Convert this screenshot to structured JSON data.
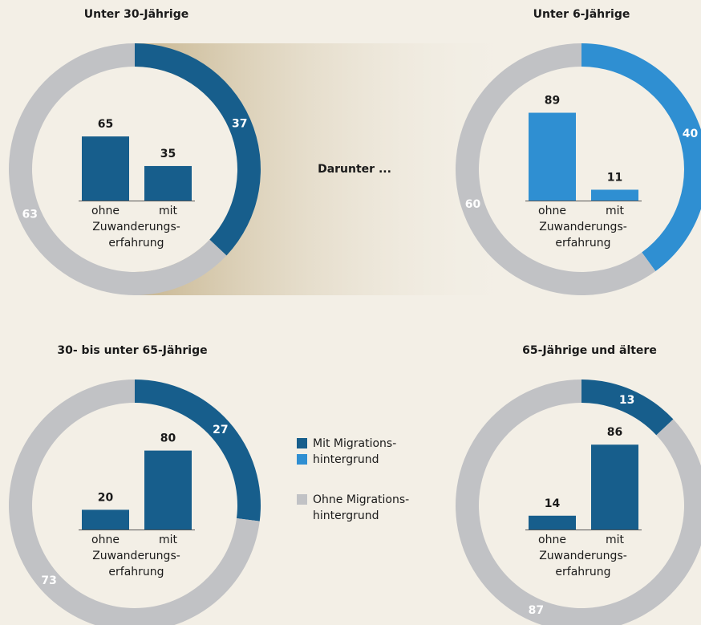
{
  "annotation": "Darunter ...",
  "legend": [
    {
      "label": [
        "Mit Migrations-",
        "hintergrund"
      ],
      "colors": [
        "#175e8c",
        "#2f8fd2"
      ]
    },
    {
      "label": [
        "Ohne Migrations-",
        "hintergrund"
      ],
      "colors": [
        "#c1c2c5"
      ]
    }
  ],
  "chart_data": [
    {
      "type": "donut",
      "title": "Unter 30-Jährige",
      "values": [
        37,
        63
      ],
      "colors": [
        "#175e8c",
        "#c1c2c5"
      ],
      "bars": {
        "categories": [
          "ohne",
          "mit"
        ],
        "values": [
          65,
          35
        ],
        "color": "#175e8c",
        "label": [
          "Zuwanderungs-",
          "erfahrung"
        ],
        "ylim": [
          0,
          100
        ]
      }
    },
    {
      "type": "donut",
      "title": "Unter 6-Jährige",
      "values": [
        40,
        60
      ],
      "colors": [
        "#2f8fd2",
        "#c1c2c5"
      ],
      "bars": {
        "categories": [
          "ohne",
          "mit"
        ],
        "values": [
          89,
          11
        ],
        "color": "#2f8fd2",
        "label": [
          "Zuwanderungs-",
          "erfahrung"
        ],
        "ylim": [
          0,
          100
        ]
      }
    },
    {
      "type": "donut",
      "title": "30- bis unter 65-Jährige",
      "values": [
        27,
        73
      ],
      "colors": [
        "#175e8c",
        "#c1c2c5"
      ],
      "bars": {
        "categories": [
          "ohne",
          "mit"
        ],
        "values": [
          20,
          80
        ],
        "color": "#175e8c",
        "label": [
          "Zuwanderungs-",
          "erfahrung"
        ],
        "ylim": [
          0,
          100
        ]
      }
    },
    {
      "type": "donut",
      "title": "65-Jährige und ältere",
      "values": [
        13,
        87
      ],
      "colors": [
        "#175e8c",
        "#c1c2c5"
      ],
      "bars": {
        "categories": [
          "ohne",
          "mit"
        ],
        "values": [
          14,
          86
        ],
        "color": "#175e8c",
        "label": [
          "Zuwanderungs-",
          "erfahrung"
        ],
        "ylim": [
          0,
          100
        ]
      }
    }
  ]
}
